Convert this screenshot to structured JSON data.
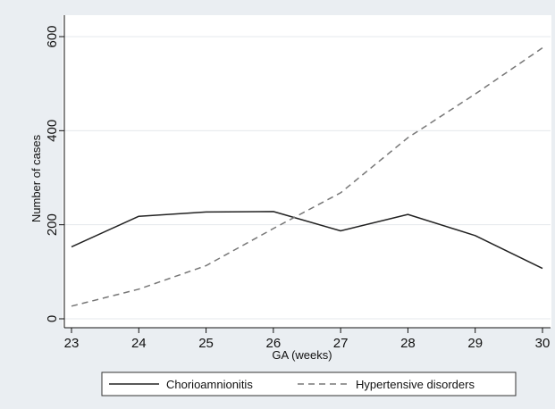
{
  "chart_data": {
    "type": "line",
    "xlabel": "GA (weeks)",
    "ylabel": "Number of cases",
    "x": [
      23,
      24,
      25,
      26,
      27,
      28,
      29,
      30
    ],
    "xlim": [
      23,
      30
    ],
    "ylim": [
      0,
      600
    ],
    "xticks": [
      "23",
      "24",
      "25",
      "26",
      "27",
      "28",
      "29",
      "30"
    ],
    "yticks": [
      "0",
      "200",
      "400",
      "600"
    ],
    "grid": "horizontal",
    "legend_position": "bottom",
    "series": [
      {
        "name": "Chorioamnionitis",
        "style": "solid",
        "color": "#222222",
        "values": [
          153,
          218,
          227,
          228,
          187,
          222,
          177,
          107
        ]
      },
      {
        "name": "Hypertensive disorders",
        "style": "dashed",
        "color": "#777777",
        "values": [
          27,
          63,
          113,
          192,
          268,
          385,
          478,
          576
        ]
      }
    ]
  }
}
